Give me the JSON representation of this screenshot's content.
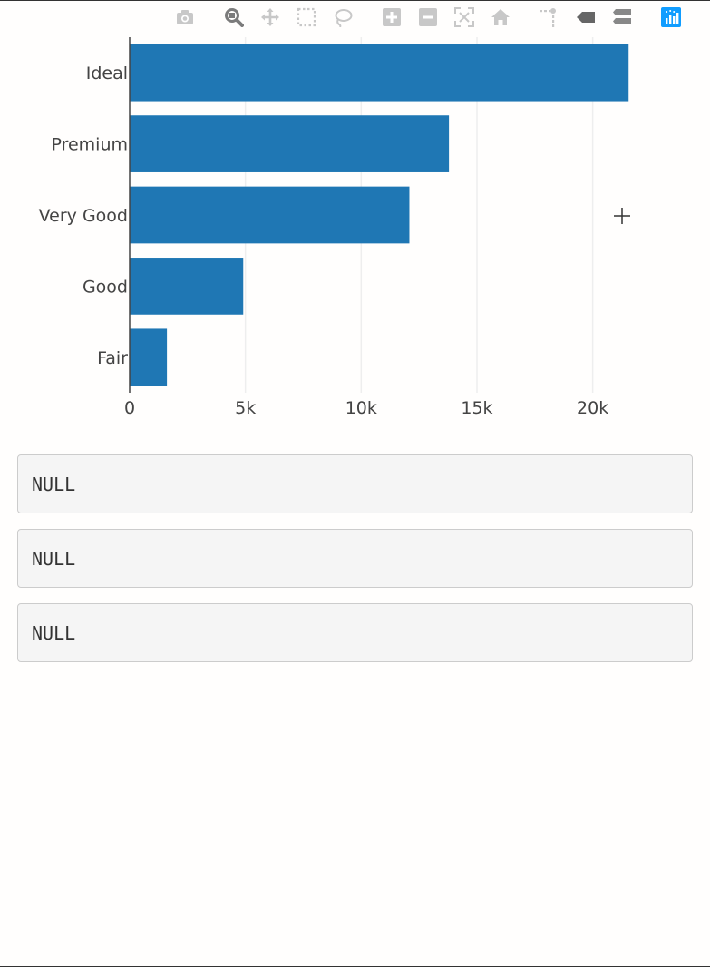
{
  "modebar": {
    "buttons": [
      {
        "name": "camera-icon",
        "active": false
      },
      {
        "name": "zoom-icon",
        "active": true
      },
      {
        "name": "pan-icon",
        "active": false
      },
      {
        "name": "box-select-icon",
        "active": false
      },
      {
        "name": "lasso-select-icon",
        "active": false
      },
      {
        "name": "zoom-in-icon",
        "active": false
      },
      {
        "name": "zoom-out-icon",
        "active": false
      },
      {
        "name": "autoscale-icon",
        "active": false
      },
      {
        "name": "reset-axes-icon",
        "active": false
      },
      {
        "name": "spike-lines-icon",
        "active": false
      },
      {
        "name": "hover-closest-icon",
        "active": false
      },
      {
        "name": "hover-compare-icon",
        "active": false
      },
      {
        "name": "plotly-logo-icon",
        "active": false
      }
    ],
    "icon_color": "#c8c8c8",
    "active_color": "#7b7b7b",
    "logo_color": "#119dff"
  },
  "chart_data": {
    "type": "bar",
    "orientation": "horizontal",
    "categories": [
      "Fair",
      "Good",
      "Very Good",
      "Premium",
      "Ideal"
    ],
    "values": [
      1610,
      4906,
      12082,
      13791,
      21551
    ],
    "xlim": [
      0,
      23500
    ],
    "x_ticks": [
      0,
      5000,
      10000,
      15000,
      20000
    ],
    "x_tick_labels": [
      "0",
      "5k",
      "10k",
      "15k",
      "20k"
    ],
    "bar_color": "#1f77b4",
    "grid": true,
    "title": "",
    "xlabel": "",
    "ylabel": ""
  },
  "outputs": [
    "NULL",
    "NULL",
    "NULL"
  ]
}
